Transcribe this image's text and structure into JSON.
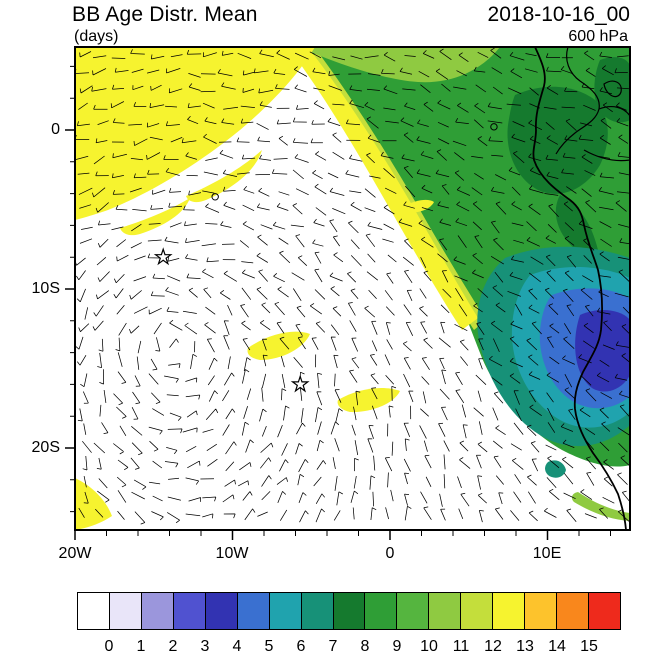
{
  "header": {
    "title_left": "BB Age Distr. Mean",
    "subtitle_left": "(days)",
    "title_right": "2018-10-16_00",
    "subtitle_right": "600 hPa"
  },
  "axes": {
    "x_tick_labels": [
      "20W",
      "10W",
      "0",
      "10E"
    ],
    "x_tick_lons": [
      -20,
      -10,
      0,
      10
    ],
    "y_tick_labels": [
      "0",
      "10S",
      "20S"
    ],
    "y_tick_lats": [
      0,
      -10,
      -20
    ]
  },
  "colorbar": {
    "colors": [
      "#FFFFFF",
      "#E9E5F9",
      "#9B96DC",
      "#5052D0",
      "#3233B2",
      "#3A70D0",
      "#20A3AE",
      "#179178",
      "#157A2E",
      "#2F9E36",
      "#55B53F",
      "#8FCA41",
      "#C4DE3B",
      "#F6F32F",
      "#FDC32C",
      "#F9871C",
      "#EE2A1C"
    ],
    "labels": [
      "0",
      "1",
      "2",
      "3",
      "4",
      "5",
      "6",
      "7",
      "8",
      "9",
      "10",
      "11",
      "12",
      "13",
      "14",
      "15"
    ]
  },
  "chart_data": {
    "type": "map-contour",
    "title": "BB Age Distr. Mean",
    "units": "(days)",
    "time": "2018-10-16_00",
    "level": "600 hPa",
    "lon_range_deg": [
      -20,
      15.2
    ],
    "lat_range_deg": [
      -25.2,
      5.2
    ],
    "contour_levels_days": [
      0,
      1,
      2,
      3,
      4,
      5,
      6,
      7,
      8,
      9,
      10,
      11,
      12,
      13,
      14,
      15
    ],
    "overlay": "wind barbs over the whole domain",
    "markers": [
      {
        "type": "star",
        "lon": -14.4,
        "lat": -8.0
      },
      {
        "type": "star",
        "lon": -5.7,
        "lat": -16.0
      }
    ],
    "calm_wind_circles": [
      {
        "lon": -11.1,
        "lat": -4.2
      },
      {
        "lon": 6.6,
        "lat": 0.2
      }
    ],
    "regions": [
      {
        "color": "yellow",
        "value_days": "11-13",
        "where": "diagonal band across the northwest corner of the domain"
      },
      {
        "color": "yellow",
        "value_days": "11-13",
        "where": "fringe along the white/green boundary and small mid-ocean patches near the star markers"
      },
      {
        "color": "green",
        "value_days": "8-11",
        "where": "northeast quadrant, Gulf of Guinea and adjacent African coast"
      },
      {
        "color": "teal-cyan",
        "value_days": "6-7",
        "where": "rim around the coastal minimum off Angola"
      },
      {
        "color": "blue",
        "value_days": "3-5",
        "where": "core just off the Angola / Namibia coast"
      },
      {
        "color": "white",
        "value_days": "0",
        "where": "central and southern South Atlantic"
      }
    ]
  }
}
